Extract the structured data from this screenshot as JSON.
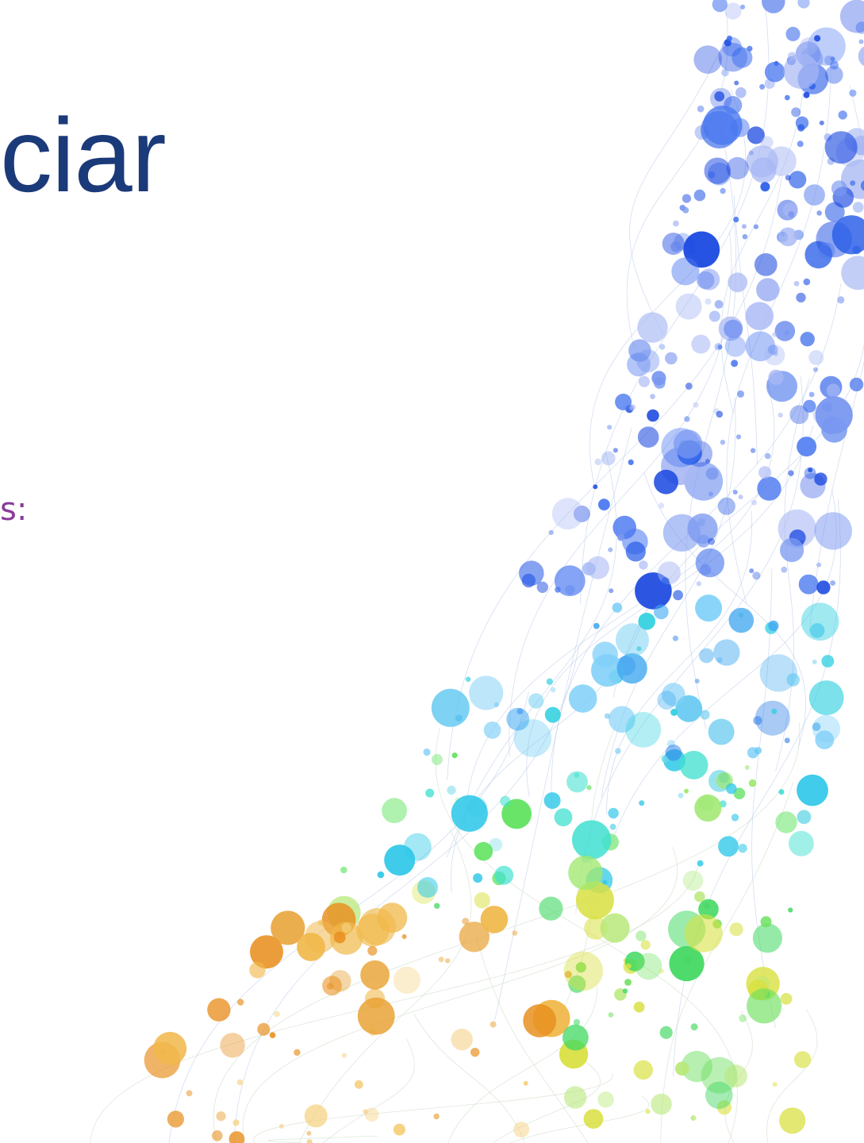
{
  "slide": {
    "title": "ciar",
    "subtitle": "s:"
  }
}
